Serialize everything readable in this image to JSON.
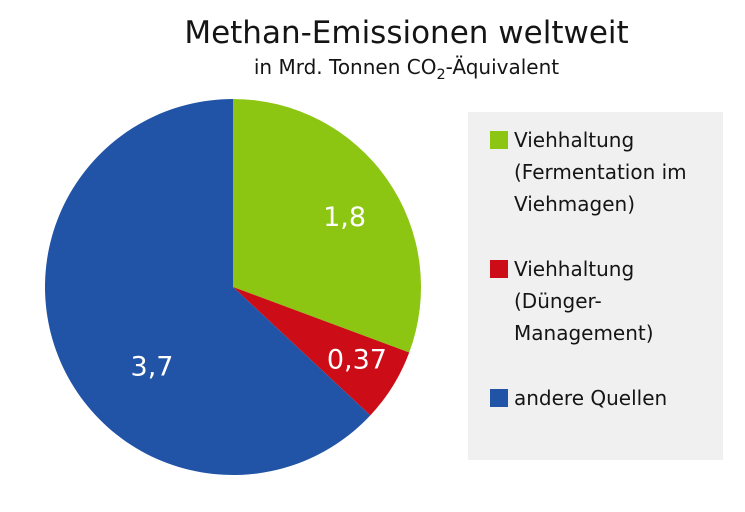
{
  "title": "Methan-Emissionen weltweit",
  "subtitle": {
    "prefix": "in Mrd. Tonnen CO",
    "sub2": "2",
    "suffix": "-Äquivalent"
  },
  "chart_data": {
    "type": "pie",
    "title": "Methan-Emissionen weltweit",
    "subtitle": "in Mrd. Tonnen CO2-Äquivalent",
    "unit": "Mrd. Tonnen CO2-Äquivalent",
    "total": 5.87,
    "start_angle_deg": 0,
    "direction": "clockwise",
    "legend_position": "right",
    "legend_background": "#f0f0f1",
    "slices": [
      {
        "slug": "viehhaltung-fermentation-im-viehmagen",
        "label": "Viehhaltung (Fermentation im Viehmagen)",
        "legend_lines": [
          "Viehhaltung",
          "(Fermentation im",
          "Viehmagen)"
        ],
        "value": 1.8,
        "value_display": "1,8",
        "color": "#8cc613"
      },
      {
        "slug": "viehhaltung-duenger-management",
        "label": "Viehhaltung (Dünger-Management)",
        "legend_lines": [
          "Viehhaltung",
          "(Dünger-",
          "Management)"
        ],
        "value": 0.37,
        "value_display": "0,37",
        "color": "#cc0d18"
      },
      {
        "slug": "andere-quellen",
        "label": "andere Quellen",
        "legend_lines": [
          "andere Quellen"
        ],
        "value": 3.7,
        "value_display": "3,7",
        "color": "#2154a6"
      }
    ]
  }
}
